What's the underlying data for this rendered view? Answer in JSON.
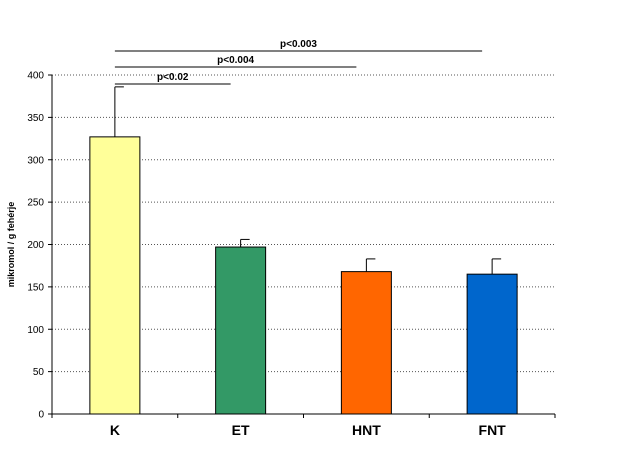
{
  "chart_data": {
    "type": "bar",
    "categories": [
      "K",
      "ET",
      "HNT",
      "FNT"
    ],
    "values": [
      327,
      197,
      168,
      165
    ],
    "error_plus": [
      59,
      9,
      15,
      18
    ],
    "colors": [
      "#ffff99",
      "#339966",
      "#ff6600",
      "#0066cc"
    ],
    "ylabel": "mikromol / g fehérje",
    "ylim": [
      0,
      400
    ],
    "yticks": [
      0,
      50,
      100,
      150,
      200,
      250,
      300,
      350,
      400
    ],
    "grid": true,
    "gridline_style": "dotted",
    "significance": [
      {
        "label": "p<0.02",
        "from": "K",
        "to": "ET"
      },
      {
        "label": "p<0.004",
        "from": "K",
        "to": "HNT"
      },
      {
        "label": "p<0.003",
        "from": "K",
        "to": "FNT"
      }
    ]
  }
}
